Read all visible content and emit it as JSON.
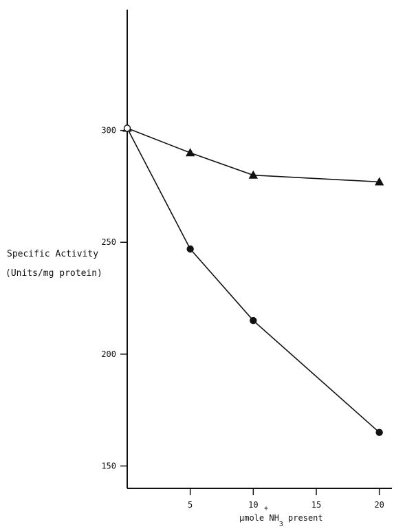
{
  "chart_data": {
    "type": "line",
    "ylabel_line1": "Specific Activity",
    "ylabel_line2": "(Units/mg protein)",
    "xlabel": {
      "prefix": "μmole NH",
      "superscript": "+",
      "subscript": "3",
      "suffix": " present"
    },
    "x_ticks": [
      5,
      10,
      15,
      20
    ],
    "y_ticks": [
      150,
      200,
      250,
      300
    ],
    "xlim": [
      0,
      21
    ],
    "ylim": [
      140,
      354
    ],
    "grid": false,
    "legend": "none",
    "series": [
      {
        "marker": "triangle",
        "x": [
          0,
          5,
          10,
          20
        ],
        "y": [
          301,
          290,
          280,
          277
        ]
      },
      {
        "marker": "circle",
        "x": [
          0,
          5,
          10,
          20
        ],
        "y": [
          301,
          247,
          215,
          165
        ]
      }
    ],
    "colors": {
      "ink": "#111111",
      "background": "#ffffff"
    }
  }
}
